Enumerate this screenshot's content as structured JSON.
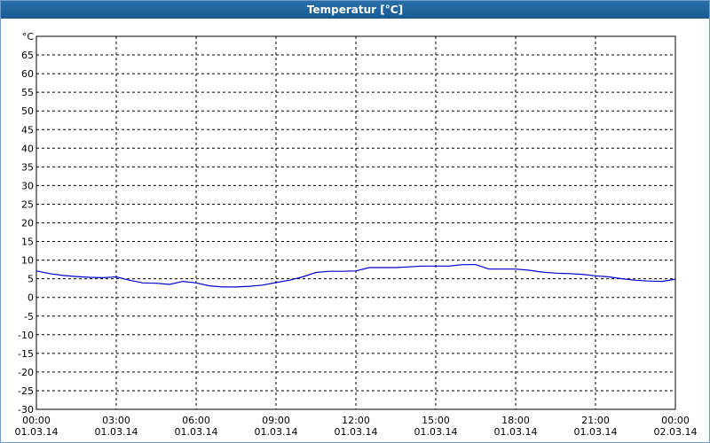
{
  "chart_data": {
    "type": "line",
    "title": "Temperatur [°C]",
    "x": [
      0,
      0.5,
      1,
      1.5,
      2,
      2.5,
      3,
      3.5,
      4,
      4.5,
      5,
      5.5,
      6,
      6.5,
      7,
      7.5,
      8,
      8.5,
      9,
      9.5,
      10,
      10.5,
      11,
      11.5,
      12,
      12.5,
      13,
      13.5,
      14,
      14.5,
      15,
      15.5,
      16,
      16.5,
      17,
      17.5,
      18,
      18.5,
      19,
      19.5,
      20,
      20.5,
      21,
      21.5,
      22,
      22.5,
      23,
      23.5,
      24
    ],
    "values": [
      7.1,
      6.4,
      5.9,
      5.6,
      5.4,
      5.3,
      5.5,
      4.6,
      3.9,
      3.8,
      3.5,
      4.3,
      3.9,
      3.1,
      2.8,
      2.8,
      3.0,
      3.3,
      4.0,
      4.6,
      5.5,
      6.7,
      7.0,
      7.0,
      7.1,
      8.0,
      8.0,
      8.0,
      8.2,
      8.4,
      8.4,
      8.4,
      8.8,
      8.8,
      7.6,
      7.6,
      7.6,
      7.3,
      6.8,
      6.5,
      6.4,
      6.2,
      5.8,
      5.5,
      5.0,
      4.6,
      4.4,
      4.3,
      4.9
    ],
    "color": "#0000cc",
    "xlim": [
      0,
      24
    ],
    "xticks": [
      {
        "value": 0,
        "label": "00:00\n01.03.14"
      },
      {
        "value": 3,
        "label": "03:00\n01.03.14"
      },
      {
        "value": 6,
        "label": "06:00\n01.03.14"
      },
      {
        "value": 9,
        "label": "09:00\n01.03.14"
      },
      {
        "value": 12,
        "label": "12:00\n01.03.14"
      },
      {
        "value": 15,
        "label": "15:00\n01.03.14"
      },
      {
        "value": 18,
        "label": "18:00\n01.03.14"
      },
      {
        "value": 21,
        "label": "21:00\n01.03.14"
      },
      {
        "value": 24,
        "label": "00:00\n02.03.14"
      }
    ],
    "ylim": [
      -30,
      70
    ],
    "yticks": [
      -30,
      -25,
      -20,
      -15,
      -10,
      -5,
      0,
      5,
      10,
      15,
      20,
      25,
      30,
      35,
      40,
      45,
      50,
      55,
      60,
      65,
      {
        "value": 70,
        "label": "°C"
      }
    ],
    "grid": true
  }
}
